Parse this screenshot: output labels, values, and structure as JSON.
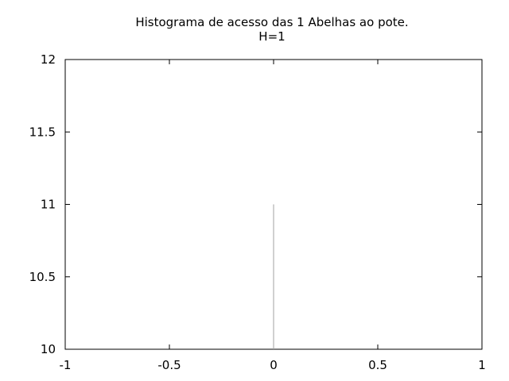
{
  "chart_data": {
    "type": "bar",
    "title": "Histograma de acesso das 1 Abelhas ao pote.",
    "subtitle": "H=1",
    "xlabel": "",
    "ylabel": "",
    "xlim": [
      -1,
      1
    ],
    "ylim": [
      10,
      12
    ],
    "x_ticks": [
      "-1",
      "-0.5",
      "0",
      "0.5",
      "1"
    ],
    "y_ticks": [
      "10",
      "10.5",
      "11",
      "11.5",
      "12"
    ],
    "grid": false,
    "legend": "none",
    "x": [
      0
    ],
    "values": [
      11
    ],
    "bar_color": "#a0a0a0"
  }
}
